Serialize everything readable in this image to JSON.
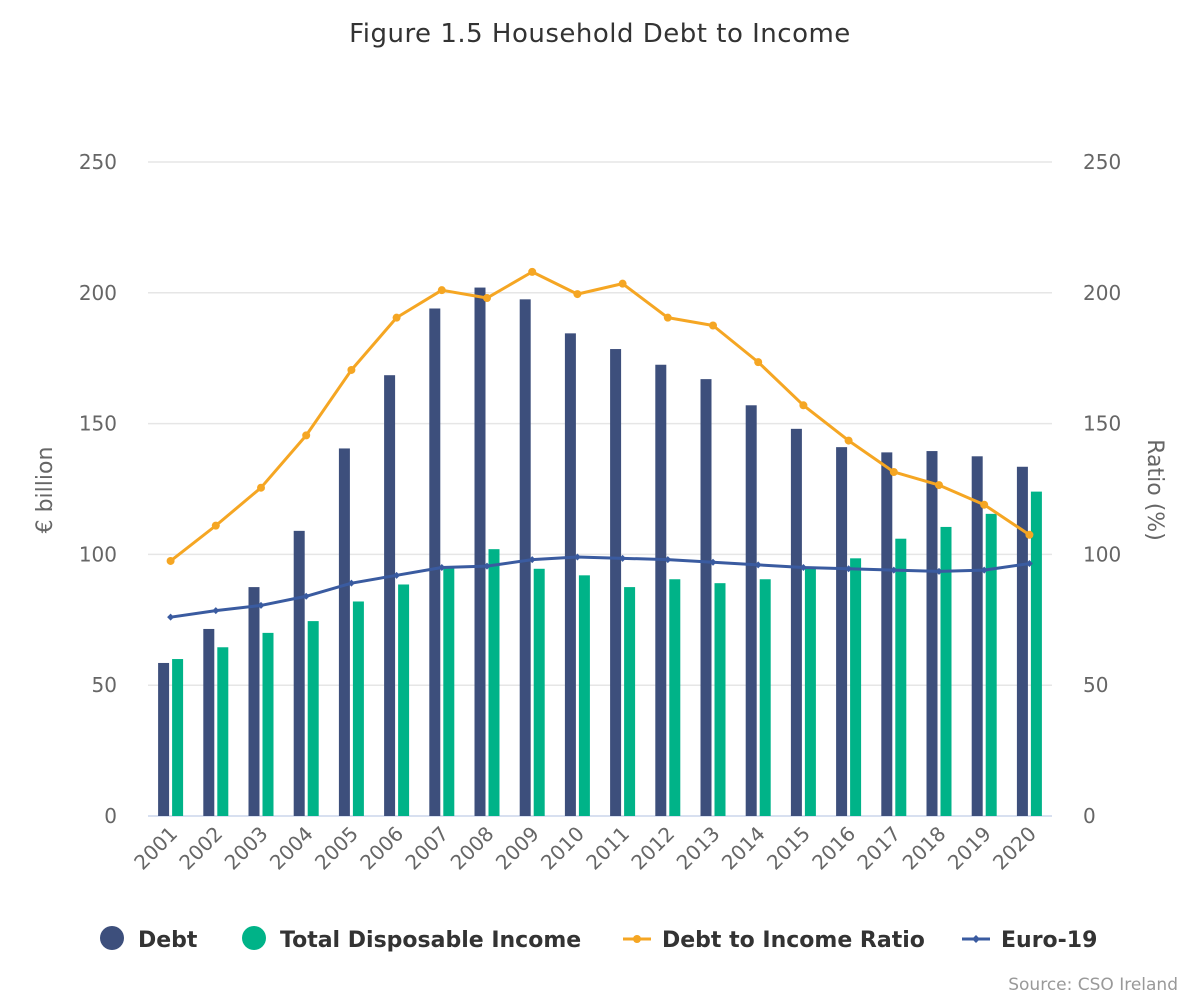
{
  "chart_data": {
    "type": "bar",
    "title": "Figure 1.5 Household Debt to Income",
    "ylabel_left": "€ billion",
    "ylabel_right": "Ratio (%)",
    "ylim_left": [
      0,
      250
    ],
    "ylim_right": [
      0,
      250
    ],
    "y_ticks": [
      0,
      50,
      100,
      150,
      200,
      250
    ],
    "grid": true,
    "legend_position": "bottom",
    "categories": [
      "2001",
      "2002",
      "2003",
      "2004",
      "2005",
      "2006",
      "2007",
      "2008",
      "2009",
      "2010",
      "2011",
      "2012",
      "2013",
      "2014",
      "2015",
      "2016",
      "2017",
      "2018",
      "2019",
      "2020"
    ],
    "series": [
      {
        "name": "Debt",
        "type": "bar",
        "axis": "left",
        "color": "#3d4f7c",
        "values": [
          58.5,
          71.5,
          87.5,
          109,
          140.5,
          168.5,
          194,
          202,
          197.5,
          184.5,
          178.5,
          172.5,
          167,
          157,
          148,
          141,
          139,
          139.5,
          137.5,
          133.5
        ]
      },
      {
        "name": "Total Disposable Income",
        "type": "bar",
        "axis": "left",
        "color": "#00b388",
        "values": [
          60,
          64.5,
          70,
          74.5,
          82,
          88.5,
          95,
          102,
          94.5,
          92,
          87.5,
          90.5,
          89,
          90.5,
          95,
          98.5,
          106,
          110.5,
          115.5,
          124
        ]
      },
      {
        "name": "Debt to Income Ratio",
        "type": "line",
        "axis": "right",
        "color": "#f5a623",
        "values": [
          97.5,
          111,
          125.5,
          145.5,
          170.5,
          190.5,
          201,
          198,
          208,
          199.5,
          203.5,
          190.5,
          187.5,
          173.5,
          157,
          143.5,
          131.5,
          126.5,
          119,
          107.5
        ]
      },
      {
        "name": "Euro-19",
        "type": "line",
        "axis": "right",
        "color": "#3a5ba0",
        "values": [
          76,
          78.5,
          80.5,
          84,
          89,
          92,
          95,
          95.5,
          98,
          99,
          98.5,
          98,
          97,
          96,
          95,
          94.5,
          94,
          93.5,
          94,
          96.5
        ]
      }
    ]
  },
  "source": "Source: CSO Ireland"
}
